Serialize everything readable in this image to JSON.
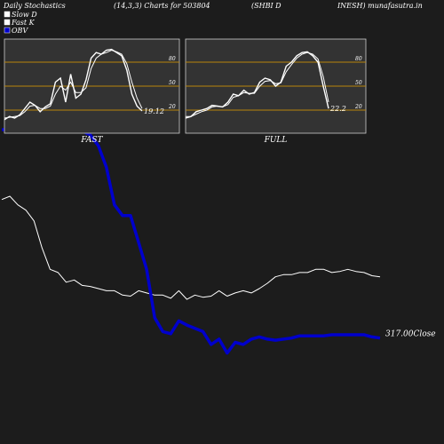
{
  "header": {
    "left": "Daily Stochastics",
    "params": "(14,3,3) Charts for 503804",
    "name_a": "(SHBI D",
    "name_b": "INESH) munafasutra.in"
  },
  "legend": [
    {
      "label": "Slow  D",
      "color": "#ffffff"
    },
    {
      "label": "Fast K",
      "color": "#ffffff"
    },
    {
      "label": "OBV",
      "color": "#0000cc"
    }
  ],
  "colors": {
    "background": "#1c1c1c",
    "panel": "#333333",
    "ref_line": "#b8860b",
    "price_line": "#ffffff",
    "obv_line": "#0000cc"
  },
  "chart_data": [
    {
      "type": "line",
      "panel": "fast",
      "label": "FAST",
      "ylim": [
        0,
        100
      ],
      "reference_lines": [
        20,
        50,
        80
      ],
      "yticks": [
        "80",
        "50",
        "20"
      ],
      "end_value_label": "19.12",
      "series": [
        {
          "name": "Fast K",
          "values": [
            8,
            12,
            10,
            14,
            22,
            30,
            26,
            18,
            24,
            28,
            55,
            60,
            30,
            65,
            35,
            40,
            58,
            85,
            92,
            90,
            95,
            96,
            92,
            88,
            70,
            40,
            25,
            19
          ]
        },
        {
          "name": "Slow  D",
          "values": [
            10,
            11,
            12,
            13,
            18,
            25,
            26,
            22,
            22,
            25,
            40,
            50,
            45,
            55,
            42,
            42,
            48,
            72,
            85,
            90,
            92,
            95,
            93,
            90,
            78,
            55,
            35,
            22
          ]
        }
      ]
    },
    {
      "type": "line",
      "panel": "full",
      "label": "FULL",
      "ylim": [
        0,
        100
      ],
      "reference_lines": [
        20,
        50,
        80
      ],
      "yticks": [
        "80",
        "50",
        "20"
      ],
      "end_value_label": "22.2",
      "series": [
        {
          "name": "Fast K",
          "values": [
            10,
            12,
            18,
            20,
            22,
            26,
            25,
            24,
            30,
            40,
            38,
            45,
            40,
            42,
            55,
            60,
            58,
            50,
            55,
            75,
            80,
            88,
            92,
            93,
            88,
            80,
            50,
            22
          ]
        },
        {
          "name": "Slow  D",
          "values": [
            12,
            12,
            15,
            18,
            20,
            24,
            25,
            24,
            27,
            36,
            38,
            42,
            41,
            41,
            50,
            56,
            57,
            53,
            54,
            68,
            77,
            85,
            90,
            92,
            90,
            84,
            62,
            30
          ]
        }
      ]
    },
    {
      "type": "line",
      "panel": "price_obv",
      "close_label": "317.00Close",
      "series": [
        {
          "name": "OBV",
          "values": [
            210,
            210,
            210,
            210,
            210,
            210,
            210,
            210,
            210,
            210,
            209,
            205,
            195,
            175,
            140,
            130,
            130,
            105,
            80,
            35,
            22,
            20,
            32,
            28,
            25,
            22,
            10,
            15,
            2,
            12,
            10,
            15,
            17,
            15,
            14,
            15,
            16,
            18,
            18,
            18,
            18,
            19,
            19,
            19,
            19,
            19,
            17,
            16
          ]
        },
        {
          "name": "Price",
          "values": [
            145,
            148,
            140,
            135,
            125,
            100,
            80,
            77,
            68,
            70,
            65,
            64,
            62,
            60,
            60,
            56,
            55,
            60,
            58,
            56,
            56,
            53,
            60,
            52,
            56,
            54,
            55,
            60,
            55,
            58,
            60,
            58,
            62,
            67,
            73,
            75,
            75,
            77,
            77,
            80,
            80,
            77,
            78,
            80,
            78,
            77,
            74,
            73
          ]
        }
      ]
    }
  ]
}
